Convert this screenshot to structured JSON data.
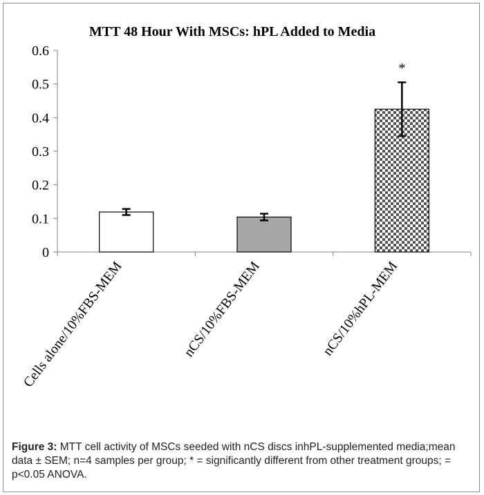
{
  "chart_data": {
    "type": "bar",
    "title": "MTT 48 Hour With MSCs: hPL Added to Media",
    "xlabel": "",
    "ylabel": "",
    "ylim": [
      0,
      0.6
    ],
    "yticks": [
      "0",
      "0.1",
      "0.2",
      "0.3",
      "0.4",
      "0.5",
      "0.6"
    ],
    "categories": [
      "Cells alone/10%FBS-MEM",
      "nCS/10%FBS-MEM",
      "nCS/10%hPL-MEM"
    ],
    "values": [
      0.119,
      0.104,
      0.425
    ],
    "errors": [
      0.009,
      0.01,
      0.08
    ],
    "annotations": [
      "",
      "",
      "*"
    ],
    "bar_fills": [
      "white",
      "gray",
      "checkerboard"
    ],
    "colors": {
      "gray_bar": "#a6a6a6",
      "checker_dark": "#555555"
    },
    "grid": false,
    "legend": "none"
  },
  "caption": {
    "label": "Figure 3:",
    "text": "MTT cell activity of MSCs seeded with nCS discs inhPL-supplemented media;mean data ± SEM; n=4 samples per group; * = significantly different from other treatment groups; = p<0.05 ANOVA."
  }
}
